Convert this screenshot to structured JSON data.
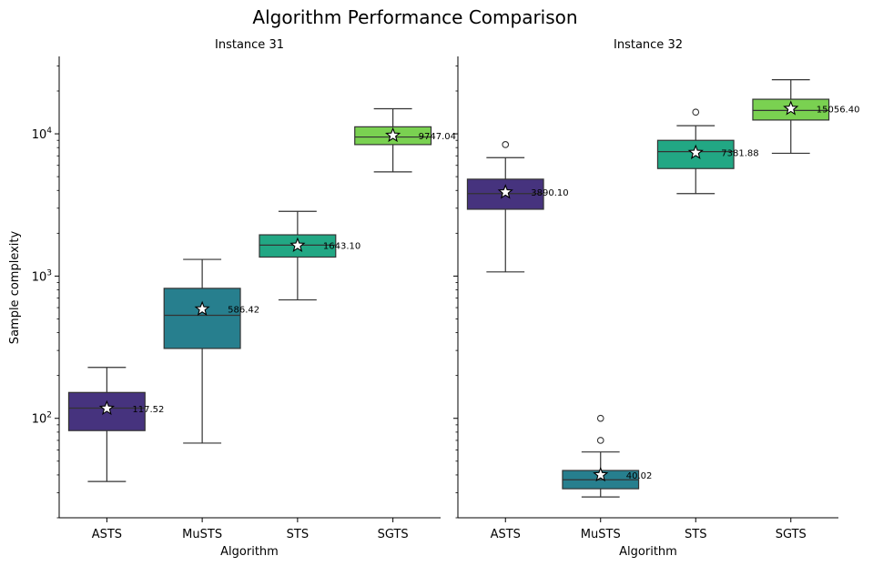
{
  "figure_title": "Algorithm Performance Comparison",
  "chart_data": {
    "type": "box",
    "scale": "log",
    "ylabel": "Sample complexity",
    "xlabel": "Algorithm",
    "ylim": [
      20,
      35000
    ],
    "y_ticks": [
      {
        "value": 100,
        "label": "10^2"
      },
      {
        "value": 1000,
        "label": "10^3"
      },
      {
        "value": 10000,
        "label": "10^4"
      }
    ],
    "shared_y": true,
    "grid": false,
    "categories": [
      "ASTS",
      "MuSTS",
      "STS",
      "SGTS"
    ],
    "colors": {
      "ASTS": "#46337e",
      "MuSTS": "#277f8e",
      "STS": "#22a784",
      "SGTS": "#7ad151"
    },
    "mean_marker": "star",
    "panels": [
      {
        "title": "Instance 31",
        "boxes": [
          {
            "category": "ASTS",
            "whisker_low": 36,
            "q1": 82,
            "median": 118,
            "q3": 152,
            "whisker_high": 228,
            "mean": 117.52,
            "mean_label": "117.52",
            "outliers": []
          },
          {
            "category": "MuSTS",
            "whisker_low": 67,
            "q1": 310,
            "median": 530,
            "q3": 820,
            "whisker_high": 1310,
            "mean": 586.42,
            "mean_label": "586.42",
            "outliers": []
          },
          {
            "category": "STS",
            "whisker_low": 680,
            "q1": 1360,
            "median": 1650,
            "q3": 1950,
            "whisker_high": 2850,
            "mean": 1643.1,
            "mean_label": "1643.10",
            "outliers": []
          },
          {
            "category": "SGTS",
            "whisker_low": 5400,
            "q1": 8400,
            "median": 9500,
            "q3": 11200,
            "whisker_high": 15000,
            "mean": 9747.04,
            "mean_label": "9747.04",
            "outliers": []
          }
        ]
      },
      {
        "title": "Instance 32",
        "boxes": [
          {
            "category": "ASTS",
            "whisker_low": 1070,
            "q1": 2950,
            "median": 3800,
            "q3": 4800,
            "whisker_high": 6800,
            "mean": 3890.1,
            "mean_label": "3890.10",
            "outliers": [
              8400
            ]
          },
          {
            "category": "MuSTS",
            "whisker_low": 28,
            "q1": 32,
            "median": 37,
            "q3": 43,
            "whisker_high": 58,
            "mean": 40.02,
            "mean_label": "40.02",
            "outliers": [
              70,
              100
            ]
          },
          {
            "category": "STS",
            "whisker_low": 3800,
            "q1": 5700,
            "median": 7500,
            "q3": 9000,
            "whisker_high": 11400,
            "mean": 7381.88,
            "mean_label": "7381.88",
            "outliers": [
              14200
            ]
          },
          {
            "category": "SGTS",
            "whisker_low": 7300,
            "q1": 12500,
            "median": 14600,
            "q3": 17500,
            "whisker_high": 24000,
            "mean": 15056.4,
            "mean_label": "15056.40",
            "outliers": []
          }
        ]
      }
    ]
  }
}
